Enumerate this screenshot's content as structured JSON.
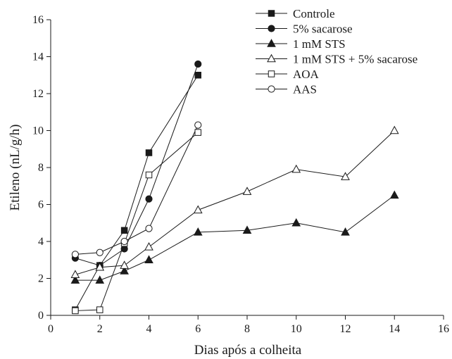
{
  "chart_data": {
    "type": "line",
    "title": "",
    "xlabel": "Dias após a colheita",
    "ylabel": "Etileno (nL/g/h)",
    "xlim": [
      0,
      16
    ],
    "ylim": [
      0,
      16
    ],
    "xticks": [
      "0",
      "2",
      "4",
      "6",
      "8",
      "10",
      "12",
      "14",
      "16"
    ],
    "yticks": [
      "0",
      "2",
      "4",
      "6",
      "8",
      "10",
      "12",
      "14",
      "16"
    ],
    "grid": false,
    "legend_position": "top-right",
    "series": [
      {
        "name": "Controle",
        "marker": "square-filled",
        "x": [
          1,
          2,
          3,
          4,
          6
        ],
        "y": [
          0.3,
          2.7,
          4.6,
          8.8,
          13.0
        ]
      },
      {
        "name": "5% sacarose",
        "marker": "circle-filled",
        "x": [
          1,
          2,
          3,
          4,
          6
        ],
        "y": [
          3.1,
          2.7,
          3.6,
          6.3,
          13.6
        ]
      },
      {
        "name": "1 mM STS",
        "marker": "triangle-filled",
        "x": [
          1,
          2,
          3,
          4,
          6,
          8,
          10,
          12,
          14
        ],
        "y": [
          1.9,
          1.9,
          2.4,
          3.0,
          4.5,
          4.6,
          5.0,
          4.5,
          6.5
        ]
      },
      {
        "name": "1 mM STS + 5% sacarose",
        "marker": "triangle-open",
        "x": [
          1,
          2,
          3,
          4,
          6,
          8,
          10,
          12,
          14
        ],
        "y": [
          2.2,
          2.6,
          2.7,
          3.7,
          5.7,
          6.7,
          7.9,
          7.5,
          10.0
        ]
      },
      {
        "name": "AOA",
        "marker": "square-open",
        "x": [
          1,
          2,
          3,
          4,
          6
        ],
        "y": [
          0.25,
          0.3,
          3.9,
          7.6,
          9.9
        ]
      },
      {
        "name": "AAS",
        "marker": "circle-open",
        "x": [
          1,
          2,
          3,
          4,
          6
        ],
        "y": [
          3.3,
          3.4,
          4.0,
          4.7,
          10.3
        ]
      }
    ]
  }
}
